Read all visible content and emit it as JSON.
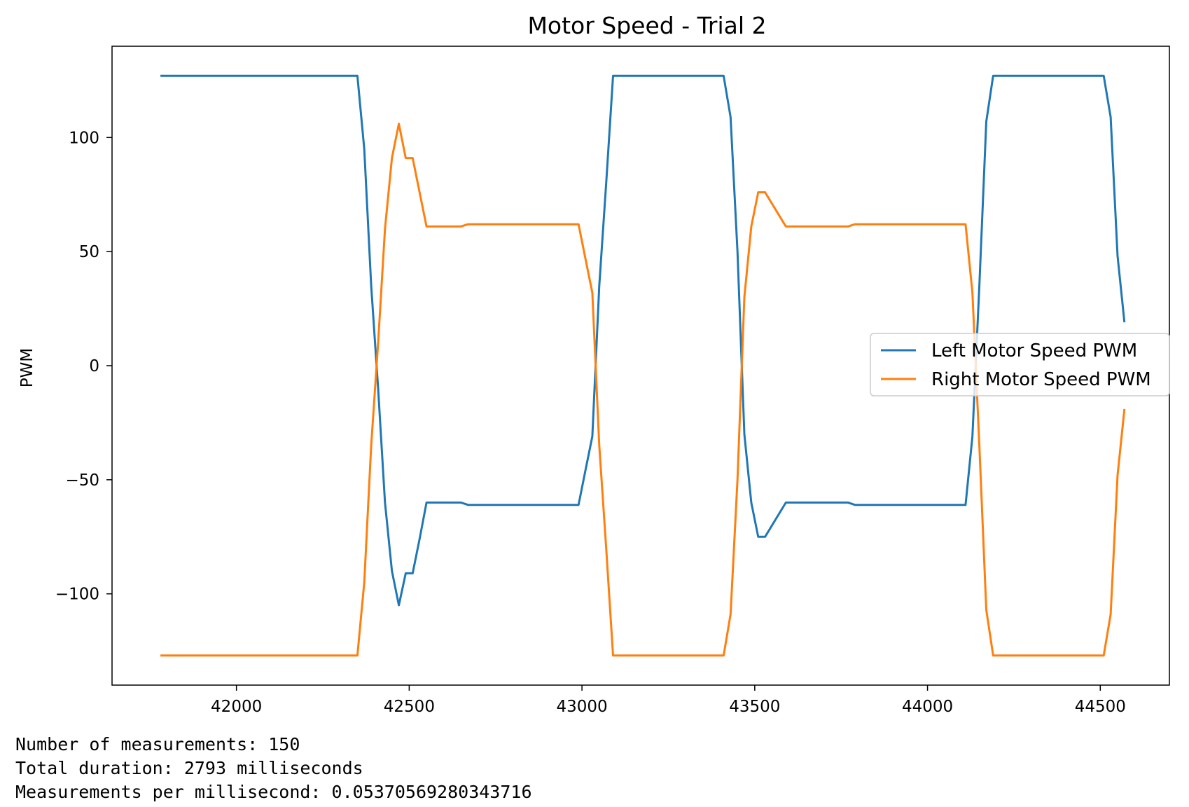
{
  "chart_data": {
    "type": "line",
    "title": "Motor Speed - Trial 2",
    "xlabel": "",
    "ylabel": "PWM",
    "xlim": [
      41640,
      44700
    ],
    "ylim": [
      -140,
      140
    ],
    "xticks": [
      42000,
      42500,
      43000,
      43500,
      44000,
      44500
    ],
    "yticks": [
      -100,
      -50,
      0,
      50,
      100
    ],
    "ytick_labels": [
      "−100",
      "−50",
      "0",
      "50",
      "100"
    ],
    "grid": false,
    "legend_position": "center-right",
    "series": [
      {
        "name": "Left Motor Speed PWM",
        "color": "#1f77b4",
        "x": [
          41780,
          42350,
          42370,
          42390,
          42410,
          42430,
          42450,
          42470,
          42490,
          42510,
          42530,
          42550,
          42650,
          42670,
          42990,
          43010,
          43030,
          43050,
          43070,
          43090,
          43110,
          43410,
          43430,
          43450,
          43470,
          43490,
          43510,
          43530,
          43590,
          43610,
          43770,
          43790,
          44110,
          44130,
          44150,
          44170,
          44190,
          44510,
          44530,
          44550,
          44570
        ],
        "y": [
          127,
          127,
          95,
          35,
          -10,
          -60,
          -90,
          -105,
          -91,
          -91,
          -76,
          -60,
          -60,
          -61,
          -61,
          -46,
          -31,
          35,
          80,
          127,
          127,
          127,
          109,
          50,
          -30,
          -60,
          -75,
          -75,
          -60,
          -60,
          -60,
          -61,
          -61,
          -31,
          35,
          107,
          127,
          127,
          109,
          48,
          19
        ]
      },
      {
        "name": "Right Motor Speed PWM",
        "color": "#ff7f0e",
        "x": [
          41780,
          42350,
          42370,
          42390,
          42410,
          42430,
          42450,
          42470,
          42490,
          42510,
          42530,
          42550,
          42650,
          42670,
          42990,
          43010,
          43030,
          43050,
          43070,
          43090,
          43110,
          43410,
          43430,
          43450,
          43470,
          43490,
          43510,
          43530,
          43590,
          43610,
          43770,
          43790,
          44110,
          44130,
          44150,
          44170,
          44190,
          44510,
          44530,
          44550,
          44570
        ],
        "y": [
          -127,
          -127,
          -95,
          -35,
          10,
          60,
          91,
          106,
          91,
          91,
          76,
          61,
          61,
          62,
          62,
          47,
          32,
          -35,
          -80,
          -127,
          -127,
          -127,
          -109,
          -50,
          30,
          61,
          76,
          76,
          61,
          61,
          61,
          62,
          62,
          32,
          -35,
          -107,
          -127,
          -127,
          -109,
          -48,
          -19
        ]
      }
    ]
  },
  "output": {
    "line1": "Number of measurements: 150",
    "line2": "Total duration: 2793 milliseconds",
    "line3": "Measurements per millisecond: 0.05370569280343716"
  }
}
